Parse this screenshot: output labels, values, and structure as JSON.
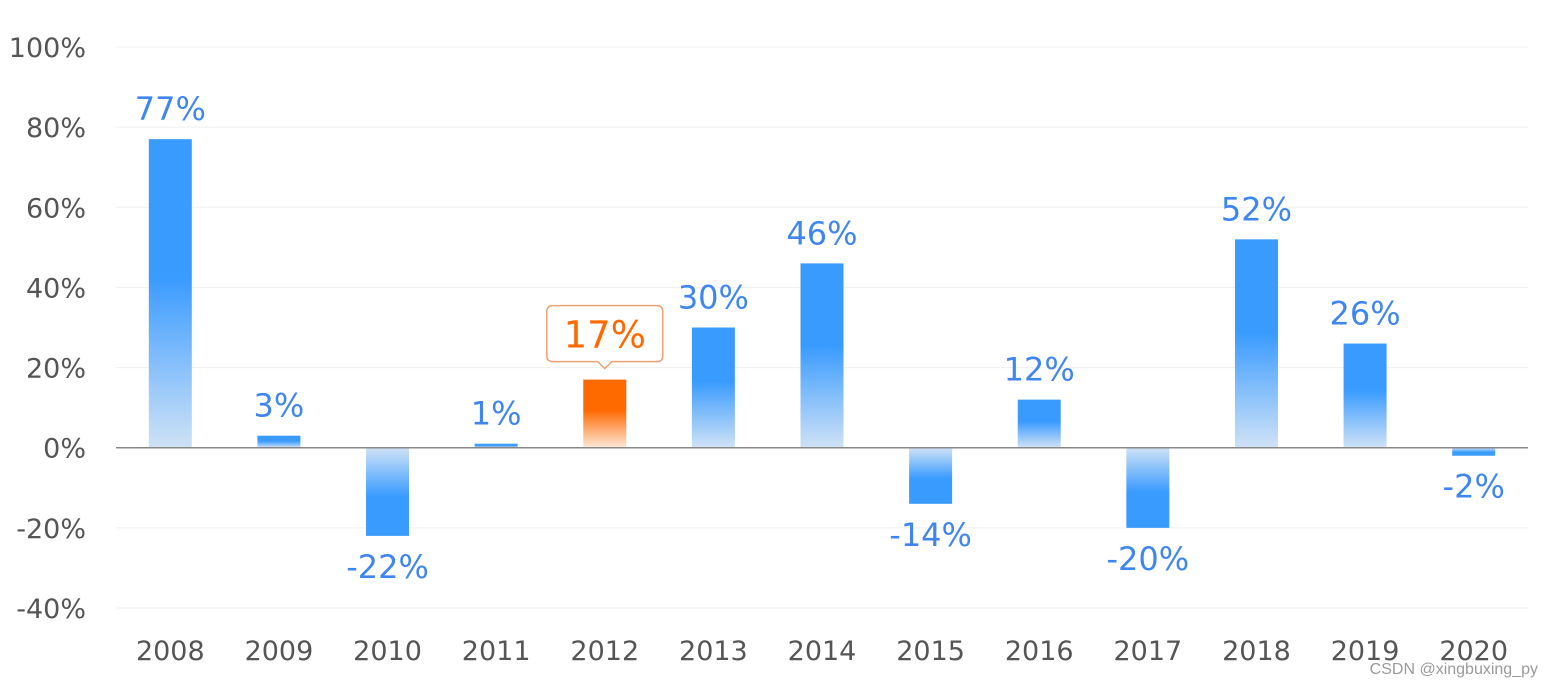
{
  "chart_data": {
    "type": "bar",
    "categories": [
      "2008",
      "2009",
      "2010",
      "2011",
      "2012",
      "2013",
      "2014",
      "2015",
      "2016",
      "2017",
      "2018",
      "2019",
      "2020"
    ],
    "values": [
      77,
      3,
      -22,
      1,
      17,
      30,
      46,
      -14,
      12,
      -20,
      52,
      26,
      -2
    ],
    "value_labels": [
      "77%",
      "3%",
      "-22%",
      "1%",
      "17%",
      "30%",
      "46%",
      "-14%",
      "12%",
      "-20%",
      "52%",
      "26%",
      "-2%"
    ],
    "highlight_category": "2012",
    "ylim": [
      -40,
      100
    ],
    "yticks": [
      100,
      80,
      60,
      40,
      20,
      0,
      -20,
      -40
    ],
    "ytick_labels": [
      "100%",
      "80%",
      "60%",
      "40%",
      "20%",
      "0%",
      "-20%",
      "-40%"
    ],
    "grid": true,
    "title": "",
    "xlabel": "",
    "ylabel": "",
    "colors": {
      "bar": "#3a9bff",
      "bar_fade": "#c6dcf5",
      "highlight": "#ff6a00",
      "highlight_fade": "#fde5d2",
      "label": "#3f86f0",
      "axis": "#888888",
      "grid": "#efefef"
    }
  },
  "watermark": "CSDN @xingbuxing_py"
}
